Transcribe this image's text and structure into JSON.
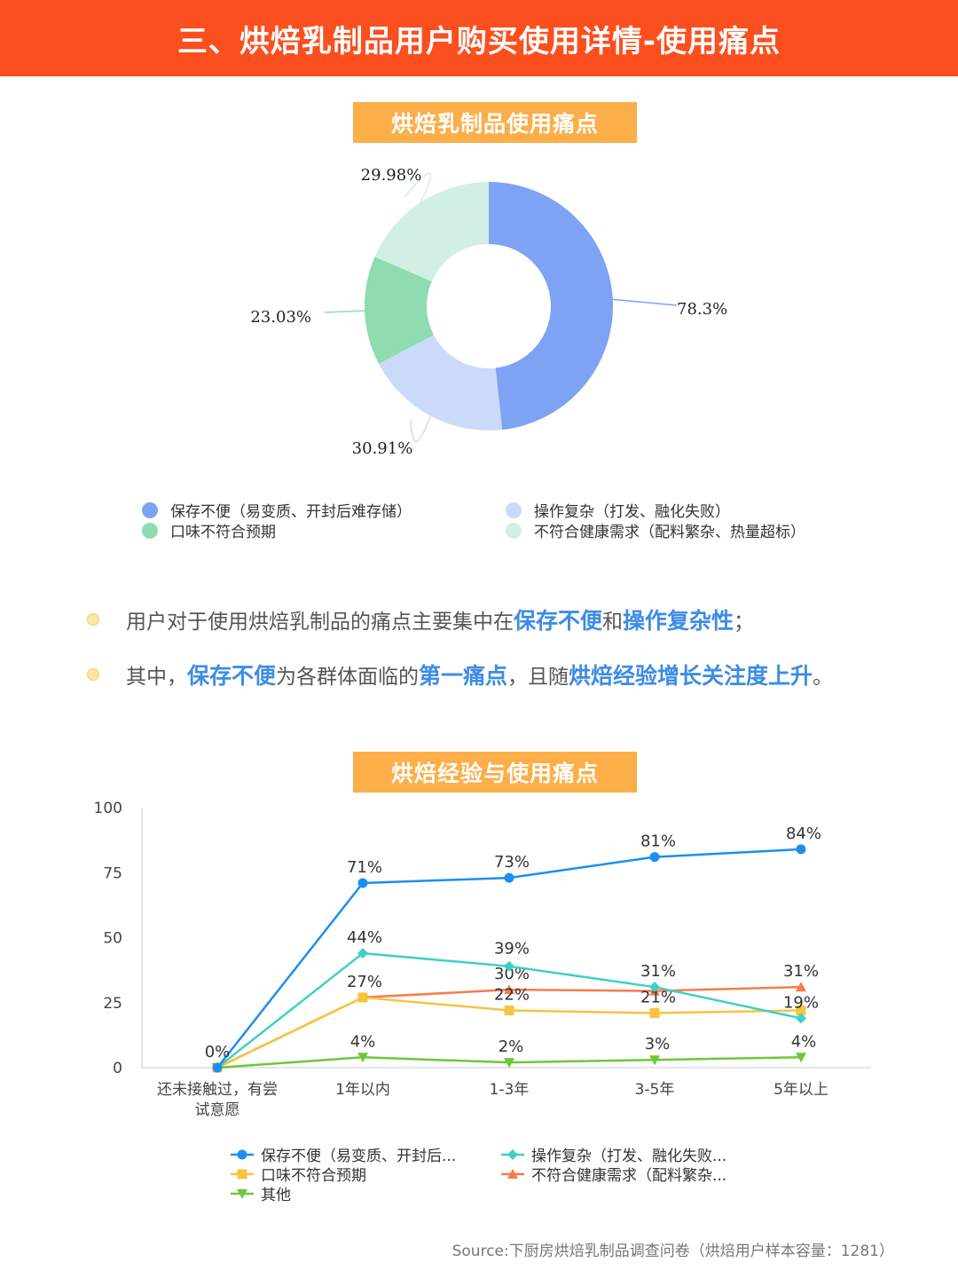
{
  "header": {
    "title": "三、烘焙乳制品用户购买使用详情-使用痛点"
  },
  "donut": {
    "title": "烘焙乳制品使用痛点",
    "legend": [
      "保存不便（易变质、开封后难存储）",
      "操作复杂（打发、融化失败）",
      "口味不符合预期",
      "不符合健康需求（配料繁杂、热量超标）"
    ]
  },
  "bullets": [
    {
      "parts": [
        {
          "text": "用户对于使用烘焙乳制品的痛点主要集中在",
          "hl": false
        },
        {
          "text": "保存不便",
          "hl": true
        },
        {
          "text": "和",
          "hl": false
        },
        {
          "text": "操作复杂性",
          "hl": true
        },
        {
          "text": "；",
          "hl": false
        }
      ]
    },
    {
      "parts": [
        {
          "text": "其中，",
          "hl": false
        },
        {
          "text": "保存不便",
          "hl": true
        },
        {
          "text": "为各群体面临的",
          "hl": false
        },
        {
          "text": "第一痛点",
          "hl": true
        },
        {
          "text": "，且随",
          "hl": false
        },
        {
          "text": "烘焙经验增长关注度上升",
          "hl": true
        },
        {
          "text": "。",
          "hl": false
        }
      ]
    }
  ],
  "line": {
    "title": "烘焙经验与使用痛点"
  },
  "source": "Source:下厨房烘焙乳制品调查问卷（烘焙用户样本容量：1281）",
  "chart_data": [
    {
      "type": "pie",
      "title": "烘焙乳制品使用痛点",
      "categories": [
        "保存不便（易变质、开封后难存储）",
        "操作复杂（打发、融化失败）",
        "口味不符合预期",
        "不符合健康需求（配料繁杂、热量超标）"
      ],
      "values": [
        78.3,
        30.91,
        23.03,
        29.98
      ],
      "labels": [
        "78.3%",
        "30.91%",
        "23.03%",
        "29.98%"
      ],
      "colors": [
        "#7ea2f4",
        "#ccdafa",
        "#8edcb0",
        "#d2efe4"
      ],
      "legend_position": "bottom"
    },
    {
      "type": "line",
      "title": "烘焙经验与使用痛点",
      "categories": [
        "还未接触过，有尝试意愿",
        "1年以内",
        "1-3年",
        "3-5年",
        "5年以上"
      ],
      "ylim": [
        0,
        100
      ],
      "yticks": [
        0,
        25,
        50,
        75,
        100
      ],
      "grid": false,
      "legend_position": "bottom",
      "series": [
        {
          "name": "保存不便（易变质、开封后...",
          "values": [
            0,
            71,
            73,
            81,
            84
          ],
          "labels": [
            "0%",
            "71%",
            "73%",
            "81%",
            "84%"
          ],
          "color": "#1a8ff2",
          "marker": "circle"
        },
        {
          "name": "操作复杂（打发、融化失败...",
          "values": [
            0,
            44,
            39,
            31,
            19
          ],
          "labels": [
            "",
            "44%",
            "39%",
            "31%",
            "19%"
          ],
          "color": "#3fcfc8",
          "marker": "diamond"
        },
        {
          "name": "口味不符合预期",
          "values": [
            0,
            27,
            22,
            21,
            22
          ],
          "labels": [
            "",
            "27%",
            "22%",
            "21%",
            ""
          ],
          "color": "#f7c440",
          "marker": "square"
        },
        {
          "name": "不符合健康需求（配料繁杂...",
          "values": [
            0,
            27,
            30,
            29.5,
            31
          ],
          "labels": [
            "",
            "",
            "30%",
            "",
            "31%"
          ],
          "color": "#f87b4b",
          "marker": "triangle"
        },
        {
          "name": "其他",
          "values": [
            0,
            4,
            2,
            3,
            4
          ],
          "labels": [
            "",
            "4%",
            "2%",
            "3%",
            "4%"
          ],
          "color": "#70c63a",
          "marker": "triangle-down"
        }
      ]
    }
  ]
}
